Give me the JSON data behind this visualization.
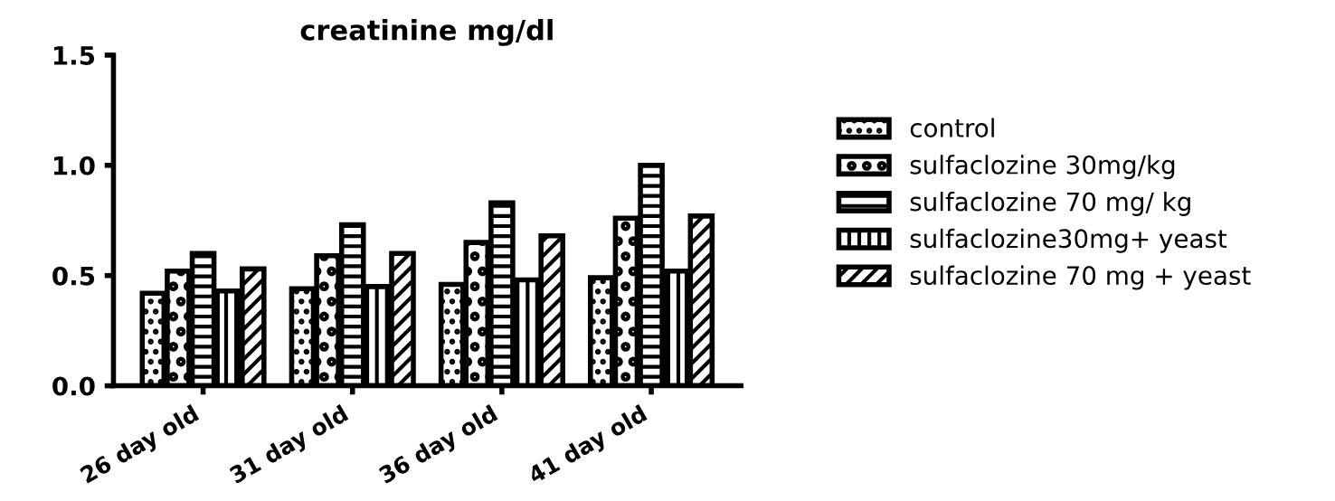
{
  "chart_data": {
    "type": "bar",
    "title": "creatinine mg/dl",
    "categories": [
      "26 day old",
      "31 day old",
      "36 day old",
      "41 day old"
    ],
    "series": [
      {
        "name": "control",
        "color": "#000000",
        "values": [
          0.42,
          0.44,
          0.46,
          0.49
        ]
      },
      {
        "name": "sulfaclozine 30mg/kg",
        "color": "#000000",
        "values": [
          0.52,
          0.59,
          0.65,
          0.76
        ]
      },
      {
        "name": "sulfaclozine 70 mg/ kg",
        "color": "#000000",
        "values": [
          0.6,
          0.73,
          0.83,
          1.0
        ]
      },
      {
        "name": "sulfaclozine30mg+ yeast",
        "color": "#000000",
        "values": [
          0.43,
          0.45,
          0.48,
          0.52
        ]
      },
      {
        "name": "sulfaclozine 70 mg + yeast",
        "color": "#000000",
        "values": [
          0.53,
          0.6,
          0.68,
          0.77
        ]
      }
    ],
    "ylim": [
      0,
      1.5
    ],
    "yticks": [
      {
        "value": 0,
        "label": "0.0"
      },
      {
        "value": 0.5,
        "label": "0.5"
      },
      {
        "value": 1.0,
        "label": "1.0"
      },
      {
        "value": 1.5,
        "label": "1.5"
      }
    ],
    "grid": false,
    "legend": "right"
  }
}
